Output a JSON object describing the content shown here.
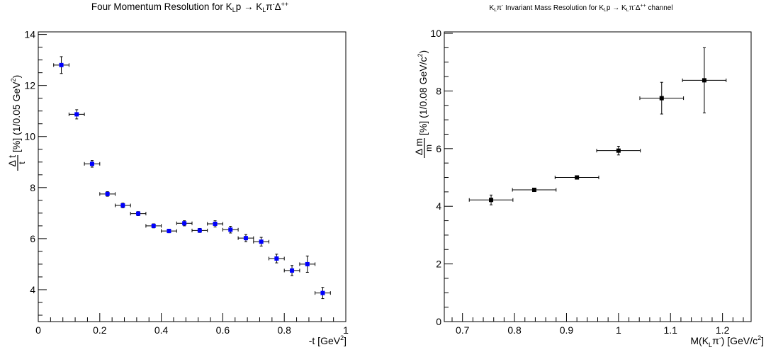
{
  "chart_data": [
    {
      "type": "scatter",
      "title": {
        "main": "Four Momentum Resolution for K",
        "sub1": "L",
        "mid": "p → K",
        "sub2": "L",
        "mid2": "π",
        "sup1": "-",
        "mid3": "Δ",
        "sup2": "++"
      },
      "xlabel": {
        "text": "-t [GeV",
        "sup": "2",
        "end": "]"
      },
      "ylabel": {
        "num": "Δ t",
        "den": "t",
        "rest": "[%] (1/0.05 GeV",
        "sup": "2",
        "end": ")"
      },
      "xlim": [
        0,
        1.0
      ],
      "ylim": [
        2.75,
        14.1
      ],
      "xticks": [
        "0",
        "0.2",
        "0.4",
        "0.6",
        "0.8",
        "1"
      ],
      "xtick_values": [
        0,
        0.2,
        0.4,
        0.6,
        0.8,
        1.0
      ],
      "yticks": [
        "4",
        "6",
        "8",
        "10",
        "12",
        "14"
      ],
      "ytick_values": [
        4,
        6,
        8,
        10,
        12,
        14
      ],
      "grid": false,
      "marker_color": "#0000ff",
      "series": [
        {
          "points": [
            {
              "x": 0.075,
              "y": 12.8,
              "xerr": 0.025,
              "yerr": 0.33
            },
            {
              "x": 0.125,
              "y": 10.87,
              "xerr": 0.025,
              "yerr": 0.18
            },
            {
              "x": 0.175,
              "y": 8.93,
              "xerr": 0.025,
              "yerr": 0.13
            },
            {
              "x": 0.225,
              "y": 7.75,
              "xerr": 0.025,
              "yerr": 0.09
            },
            {
              "x": 0.275,
              "y": 7.3,
              "xerr": 0.025,
              "yerr": 0.09
            },
            {
              "x": 0.325,
              "y": 6.98,
              "xerr": 0.025,
              "yerr": 0.08
            },
            {
              "x": 0.375,
              "y": 6.5,
              "xerr": 0.025,
              "yerr": 0.08
            },
            {
              "x": 0.425,
              "y": 6.3,
              "xerr": 0.025,
              "yerr": 0.07
            },
            {
              "x": 0.475,
              "y": 6.6,
              "xerr": 0.025,
              "yerr": 0.1
            },
            {
              "x": 0.525,
              "y": 6.32,
              "xerr": 0.025,
              "yerr": 0.08
            },
            {
              "x": 0.575,
              "y": 6.58,
              "xerr": 0.025,
              "yerr": 0.12
            },
            {
              "x": 0.625,
              "y": 6.35,
              "xerr": 0.025,
              "yerr": 0.13
            },
            {
              "x": 0.675,
              "y": 6.02,
              "xerr": 0.025,
              "yerr": 0.14
            },
            {
              "x": 0.725,
              "y": 5.88,
              "xerr": 0.025,
              "yerr": 0.17
            },
            {
              "x": 0.775,
              "y": 5.22,
              "xerr": 0.025,
              "yerr": 0.17
            },
            {
              "x": 0.825,
              "y": 4.75,
              "xerr": 0.025,
              "yerr": 0.2
            },
            {
              "x": 0.875,
              "y": 5.0,
              "xerr": 0.025,
              "yerr": 0.32
            },
            {
              "x": 0.925,
              "y": 3.87,
              "xerr": 0.025,
              "yerr": 0.22
            }
          ]
        }
      ]
    },
    {
      "type": "scatter",
      "title": {
        "main": "K",
        "sub1": "L",
        "mid": "π",
        "sup1": "-",
        "mid2": " Invariant Mass Resolution for K",
        "sub2": "L",
        "mid3": "p → K",
        "sub3": "L",
        "mid4": "π",
        "sup2": "-",
        "mid5": "Δ",
        "sup3": "++",
        "end": " channel"
      },
      "xlabel": {
        "text": "M(K",
        "sub": "L",
        "mid": "π",
        "sup": "-",
        "end": ") [GeV/c",
        "sup2": "2",
        "end2": "]"
      },
      "ylabel": {
        "num": "Δ m",
        "den": "m",
        "rest": "[%] (1/0.08 GeV/c",
        "sup": "2",
        "end": ")"
      },
      "xlim": [
        0.665,
        1.255
      ],
      "ylim": [
        0,
        10.05
      ],
      "xticks": [
        "0.7",
        "0.8",
        "0.9",
        "1",
        "1.1",
        "1.2"
      ],
      "xtick_values": [
        0.7,
        0.8,
        0.9,
        1.0,
        1.1,
        1.2
      ],
      "yticks": [
        "0",
        "2",
        "4",
        "6",
        "8",
        "10"
      ],
      "ytick_values": [
        0,
        2,
        4,
        6,
        8,
        10
      ],
      "grid": false,
      "marker_color": "#000000",
      "series": [
        {
          "points": [
            {
              "x": 0.755,
              "y": 4.22,
              "xerr": 0.042,
              "yerr": 0.17
            },
            {
              "x": 0.838,
              "y": 4.57,
              "xerr": 0.042,
              "yerr": 0.05
            },
            {
              "x": 0.92,
              "y": 5.0,
              "xerr": 0.042,
              "yerr": 0.05
            },
            {
              "x": 1.0,
              "y": 5.93,
              "xerr": 0.042,
              "yerr": 0.15
            },
            {
              "x": 1.083,
              "y": 7.75,
              "xerr": 0.042,
              "yerr": 0.55
            },
            {
              "x": 1.165,
              "y": 8.37,
              "xerr": 0.042,
              "yerr": 1.13
            }
          ]
        }
      ]
    }
  ]
}
